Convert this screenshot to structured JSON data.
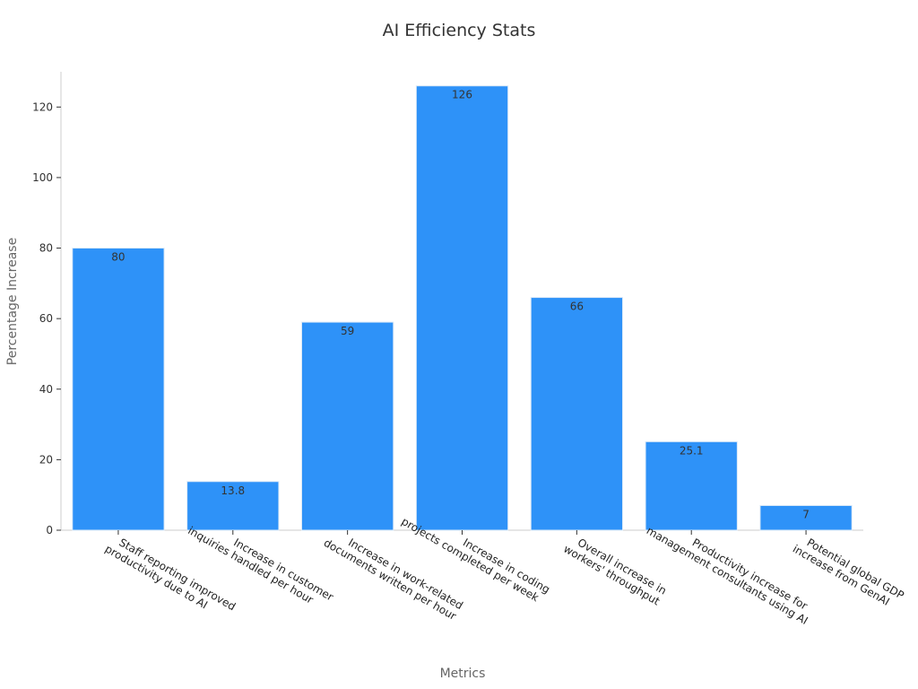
{
  "chart_data": {
    "type": "bar",
    "title": "AI Efficiency Stats",
    "xlabel": "Metrics",
    "ylabel": "Percentage Increase",
    "categories": [
      [
        "Staff reporting improved",
        "productivity due to AI"
      ],
      [
        "Increase in customer",
        "inquiries handled per hour"
      ],
      [
        "Increase in work-related",
        "documents written per hour"
      ],
      [
        "Increase in coding",
        "projects completed per week"
      ],
      [
        "Overall increase in",
        "workers' throughput"
      ],
      [
        "Productivity increase for",
        "management consultants using AI"
      ],
      [
        "Potential global GDP",
        "increase from GenAI"
      ]
    ],
    "values": [
      80,
      13.8,
      59,
      126,
      66,
      25.1,
      7
    ],
    "data_labels": [
      "80",
      "13.8",
      "59",
      "126",
      "66",
      "25.1",
      "7"
    ],
    "ylim": [
      0,
      130
    ],
    "yticks": [
      0,
      20,
      40,
      60,
      80,
      100,
      120
    ],
    "grid": false,
    "bar_color": "#2e92f8",
    "bar_edge_color": "#dbe9f7"
  }
}
